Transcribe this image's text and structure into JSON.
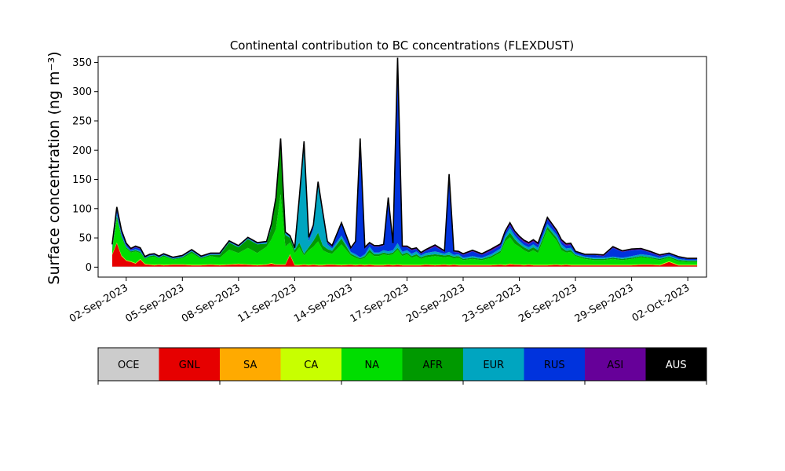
{
  "chart_data": {
    "type": "area",
    "stacked": true,
    "title": "Continental contribution to BC concentrations (FLEXDUST)",
    "ylabel": "Surface concentration (ng m⁻³)",
    "xlabel": "",
    "ylim": [
      -17,
      360
    ],
    "xlim": [
      "2023-08-31T12:00",
      "2023-10-03T00:00"
    ],
    "yticks": [
      0,
      50,
      100,
      150,
      200,
      250,
      300,
      350
    ],
    "xticks": [
      "2023-09-02",
      "2023-09-05",
      "2023-09-08",
      "2023-09-11",
      "2023-09-14",
      "2023-09-17",
      "2023-09-20",
      "2023-09-23",
      "2023-09-26",
      "2023-09-29",
      "2023-10-02"
    ],
    "xtick_labels": [
      "02-Sep-2023",
      "05-Sep-2023",
      "08-Sep-2023",
      "11-Sep-2023",
      "14-Sep-2023",
      "17-Sep-2023",
      "20-Sep-2023",
      "23-Sep-2023",
      "26-Sep-2023",
      "29-Sep-2023",
      "02-Oct-2023"
    ],
    "grid": false,
    "x": [
      "2023-09-01T06:00",
      "2023-09-01T12:00",
      "2023-09-01T18:00",
      "2023-09-02T00:00",
      "2023-09-02T06:00",
      "2023-09-02T12:00",
      "2023-09-02T18:00",
      "2023-09-03T00:00",
      "2023-09-03T06:00",
      "2023-09-03T12:00",
      "2023-09-03T18:00",
      "2023-09-04T00:00",
      "2023-09-04T12:00",
      "2023-09-05T00:00",
      "2023-09-05T12:00",
      "2023-09-06T00:00",
      "2023-09-06T12:00",
      "2023-09-07T00:00",
      "2023-09-07T12:00",
      "2023-09-08T00:00",
      "2023-09-08T12:00",
      "2023-09-09T00:00",
      "2023-09-09T12:00",
      "2023-09-09T18:00",
      "2023-09-10T00:00",
      "2023-09-10T06:00",
      "2023-09-10T12:00",
      "2023-09-10T18:00",
      "2023-09-11T00:00",
      "2023-09-11T06:00",
      "2023-09-11T12:00",
      "2023-09-11T18:00",
      "2023-09-12T00:00",
      "2023-09-12T06:00",
      "2023-09-12T12:00",
      "2023-09-12T18:00",
      "2023-09-13T00:00",
      "2023-09-13T12:00",
      "2023-09-14T00:00",
      "2023-09-14T06:00",
      "2023-09-14T12:00",
      "2023-09-14T18:00",
      "2023-09-15T00:00",
      "2023-09-15T06:00",
      "2023-09-15T12:00",
      "2023-09-15T18:00",
      "2023-09-16T00:00",
      "2023-09-16T06:00",
      "2023-09-16T12:00",
      "2023-09-16T18:00",
      "2023-09-17T00:00",
      "2023-09-17T06:00",
      "2023-09-17T12:00",
      "2023-09-17T18:00",
      "2023-09-18T00:00",
      "2023-09-18T12:00",
      "2023-09-19T00:00",
      "2023-09-19T06:00",
      "2023-09-19T12:00",
      "2023-09-19T18:00",
      "2023-09-20T00:00",
      "2023-09-20T12:00",
      "2023-09-21T00:00",
      "2023-09-21T12:00",
      "2023-09-22T00:00",
      "2023-09-22T06:00",
      "2023-09-22T12:00",
      "2023-09-22T18:00",
      "2023-09-23T00:00",
      "2023-09-23T06:00",
      "2023-09-23T12:00",
      "2023-09-23T18:00",
      "2023-09-24T00:00",
      "2023-09-24T12:00",
      "2023-09-25T00:00",
      "2023-09-25T06:00",
      "2023-09-25T12:00",
      "2023-09-25T18:00",
      "2023-09-26T00:00",
      "2023-09-26T12:00",
      "2023-09-27T00:00",
      "2023-09-27T12:00",
      "2023-09-28T00:00",
      "2023-09-28T12:00",
      "2023-09-29T00:00",
      "2023-09-29T12:00",
      "2023-09-30T00:00",
      "2023-09-30T12:00",
      "2023-10-01T00:00",
      "2023-10-01T12:00",
      "2023-10-02T00:00",
      "2023-10-02T12:00"
    ],
    "series": [
      {
        "name": "OCE",
        "color": "#cccccc",
        "values": [
          1,
          1,
          1,
          1,
          1,
          1,
          1,
          1,
          1,
          1,
          1,
          1,
          1,
          1,
          1,
          1,
          1,
          1,
          1,
          1,
          1,
          1,
          1,
          1,
          1,
          1,
          1,
          1,
          1,
          1,
          1,
          1,
          1,
          1,
          1,
          1,
          1,
          1,
          1,
          1,
          1,
          1,
          1,
          1,
          1,
          1,
          1,
          1,
          1,
          1,
          1,
          1,
          1,
          1,
          1,
          1,
          1,
          1,
          1,
          1,
          1,
          1,
          1,
          1,
          1,
          1,
          1,
          1,
          1,
          1,
          1,
          1,
          1,
          1,
          1,
          1,
          1,
          1,
          1,
          1,
          1,
          1,
          1,
          1,
          1,
          1,
          1,
          1,
          1,
          1,
          1,
          1
        ]
      },
      {
        "name": "GNL",
        "color": "#e60000",
        "values": [
          20,
          40,
          18,
          10,
          8,
          5,
          12,
          4,
          3,
          2,
          3,
          2,
          3,
          3,
          2,
          2,
          3,
          2,
          3,
          4,
          3,
          2,
          3,
          5,
          3,
          3,
          3,
          20,
          2,
          2,
          3,
          2,
          3,
          2,
          2,
          3,
          3,
          2,
          3,
          2,
          3,
          2,
          3,
          2,
          2,
          2,
          3,
          2,
          3,
          2,
          2,
          2,
          2,
          2,
          3,
          2,
          3,
          2,
          3,
          2,
          2,
          2,
          2,
          2,
          3,
          2,
          4,
          3,
          3,
          2,
          3,
          2,
          2,
          2,
          3,
          2,
          3,
          2,
          2,
          2,
          2,
          2,
          2,
          2,
          2,
          3,
          3,
          2,
          8,
          2,
          2,
          2
        ]
      },
      {
        "name": "SA",
        "color": "#ffaa00",
        "values": [
          0,
          0,
          0,
          0,
          0,
          0,
          0,
          0,
          0,
          0,
          0,
          0,
          0,
          0,
          0,
          0,
          0,
          0,
          0,
          0,
          0,
          0,
          0,
          0,
          0,
          0,
          0,
          0,
          0,
          0,
          0,
          0,
          0,
          0,
          0,
          0,
          0,
          0,
          0,
          0,
          0,
          0,
          0,
          0,
          0,
          0,
          0,
          0,
          0,
          0,
          0,
          0,
          0,
          0,
          0,
          0,
          0,
          0,
          0,
          0,
          0,
          0,
          0,
          0,
          0,
          0,
          0,
          0,
          0,
          0,
          0,
          0,
          0,
          0,
          0,
          0,
          0,
          0,
          0,
          0,
          0,
          0,
          0,
          0,
          0,
          0,
          0,
          0,
          0,
          0,
          0,
          0
        ]
      },
      {
        "name": "CA",
        "color": "#c8ff00",
        "values": [
          1,
          1,
          1,
          1,
          1,
          1,
          1,
          1,
          1,
          1,
          1,
          1,
          1,
          1,
          1,
          1,
          1,
          1,
          1,
          1,
          1,
          1,
          1,
          1,
          1,
          1,
          1,
          1,
          1,
          1,
          1,
          1,
          1,
          1,
          1,
          1,
          1,
          1,
          1,
          1,
          1,
          1,
          1,
          1,
          1,
          1,
          1,
          1,
          1,
          1,
          1,
          1,
          1,
          1,
          1,
          1,
          1,
          1,
          1,
          1,
          1,
          1,
          1,
          1,
          1,
          1,
          1,
          1,
          1,
          1,
          1,
          1,
          1,
          1,
          1,
          1,
          1,
          1,
          1,
          1,
          1,
          1,
          1,
          1,
          1,
          1,
          1,
          1,
          1,
          1,
          1,
          1
        ]
      },
      {
        "name": "NA",
        "color": "#00dd00",
        "values": [
          8,
          40,
          30,
          20,
          15,
          20,
          10,
          8,
          12,
          14,
          10,
          14,
          8,
          10,
          20,
          10,
          14,
          12,
          25,
          18,
          28,
          20,
          30,
          40,
          60,
          120,
          30,
          20,
          20,
          30,
          15,
          25,
          30,
          40,
          25,
          20,
          18,
          35,
          15,
          12,
          8,
          12,
          20,
          15,
          15,
          18,
          15,
          18,
          25,
          15,
          18,
          12,
          15,
          10,
          12,
          15,
          12,
          14,
          10,
          12,
          8,
          10,
          8,
          12,
          20,
          40,
          45,
          35,
          30,
          25,
          20,
          25,
          20,
          60,
          40,
          25,
          20,
          22,
          15,
          10,
          8,
          8,
          10,
          8,
          10,
          12,
          10,
          8,
          6,
          6,
          5,
          5
        ]
      },
      {
        "name": "AFR",
        "color": "#009900",
        "values": [
          2,
          5,
          3,
          2,
          2,
          2,
          2,
          1,
          2,
          2,
          1,
          2,
          1,
          2,
          3,
          2,
          2,
          5,
          12,
          10,
          15,
          15,
          5,
          20,
          50,
          90,
          20,
          8,
          5,
          8,
          3,
          5,
          10,
          15,
          8,
          6,
          5,
          10,
          3,
          3,
          2,
          3,
          5,
          3,
          3,
          3,
          3,
          3,
          3,
          3,
          3,
          3,
          3,
          3,
          3,
          3,
          3,
          3,
          3,
          3,
          2,
          2,
          2,
          3,
          3,
          5,
          8,
          8,
          5,
          5,
          5,
          5,
          5,
          5,
          5,
          5,
          3,
          3,
          2,
          2,
          2,
          2,
          2,
          2,
          2,
          2,
          2,
          2,
          2,
          2,
          2,
          2
        ]
      },
      {
        "name": "EUR",
        "color": "#00a5c0",
        "values": [
          2,
          5,
          3,
          2,
          1,
          2,
          2,
          1,
          1,
          1,
          1,
          1,
          1,
          1,
          1,
          1,
          1,
          1,
          1,
          1,
          1,
          1,
          2,
          3,
          2,
          3,
          3,
          2,
          2,
          70,
          180,
          10,
          20,
          80,
          50,
          8,
          4,
          5,
          3,
          3,
          2,
          3,
          5,
          3,
          3,
          4,
          4,
          4,
          8,
          4,
          4,
          4,
          5,
          3,
          4,
          5,
          3,
          5,
          3,
          3,
          2,
          3,
          2,
          3,
          4,
          5,
          8,
          6,
          5,
          4,
          4,
          5,
          4,
          5,
          5,
          5,
          4,
          4,
          2,
          2,
          2,
          2,
          2,
          2,
          3,
          3,
          3,
          2,
          2,
          2,
          1,
          1
        ]
      },
      {
        "name": "RUS",
        "color": "#0033dd",
        "values": [
          3,
          8,
          5,
          3,
          2,
          3,
          3,
          1,
          1,
          1,
          1,
          1,
          1,
          1,
          1,
          1,
          1,
          1,
          1,
          1,
          1,
          1,
          1,
          1,
          1,
          1,
          1,
          1,
          1,
          5,
          10,
          5,
          5,
          5,
          5,
          3,
          3,
          20,
          5,
          20,
          200,
          10,
          5,
          10,
          10,
          8,
          90,
          10,
          312,
          8,
          5,
          6,
          4,
          3,
          4,
          8,
          3,
          130,
          5,
          3,
          5,
          8,
          5,
          6,
          5,
          5,
          5,
          5,
          5,
          5,
          5,
          5,
          5,
          8,
          5,
          5,
          5,
          5,
          3,
          3,
          5,
          3,
          15,
          10,
          10,
          8,
          5,
          3,
          3,
          3,
          2,
          2
        ]
      },
      {
        "name": "ASI",
        "color": "#660099",
        "values": [
          2,
          3,
          2,
          2,
          2,
          2,
          2,
          1,
          1,
          1,
          1,
          1,
          1,
          1,
          1,
          1,
          1,
          1,
          1,
          1,
          1,
          1,
          1,
          2,
          1,
          1,
          1,
          1,
          1,
          2,
          2,
          2,
          2,
          2,
          2,
          2,
          2,
          2,
          2,
          2,
          3,
          2,
          2,
          2,
          2,
          2,
          2,
          2,
          5,
          2,
          2,
          2,
          2,
          2,
          2,
          3,
          2,
          3,
          2,
          2,
          2,
          2,
          2,
          3,
          3,
          3,
          4,
          3,
          3,
          3,
          3,
          3,
          3,
          3,
          3,
          3,
          3,
          3,
          1,
          1,
          1,
          2,
          2,
          2,
          2,
          2,
          2,
          2,
          1,
          1,
          1,
          1
        ]
      },
      {
        "name": "AUS",
        "color": "#000000",
        "values": [
          0,
          0,
          0,
          0,
          0,
          0,
          0,
          0,
          0,
          0,
          0,
          0,
          0,
          0,
          0,
          0,
          0,
          0,
          0,
          0,
          0,
          0,
          0,
          0,
          0,
          0,
          0,
          0,
          0,
          0,
          0,
          0,
          0,
          0,
          0,
          0,
          0,
          0,
          0,
          0,
          0,
          0,
          0,
          0,
          0,
          0,
          0,
          0,
          0,
          0,
          0,
          0,
          0,
          0,
          0,
          0,
          0,
          0,
          0,
          0,
          0,
          0,
          0,
          0,
          0,
          0,
          0,
          0,
          0,
          0,
          0,
          0,
          0,
          0,
          0,
          0,
          0,
          0,
          0,
          0,
          0,
          0,
          0,
          0,
          0,
          0,
          0,
          0,
          0,
          0,
          0,
          0
        ]
      }
    ],
    "legend_placement": "bottom",
    "legend_text_colors": [
      "#000000",
      "#000000",
      "#000000",
      "#000000",
      "#000000",
      "#000000",
      "#000000",
      "#000000",
      "#000000",
      "#ffffff"
    ]
  }
}
